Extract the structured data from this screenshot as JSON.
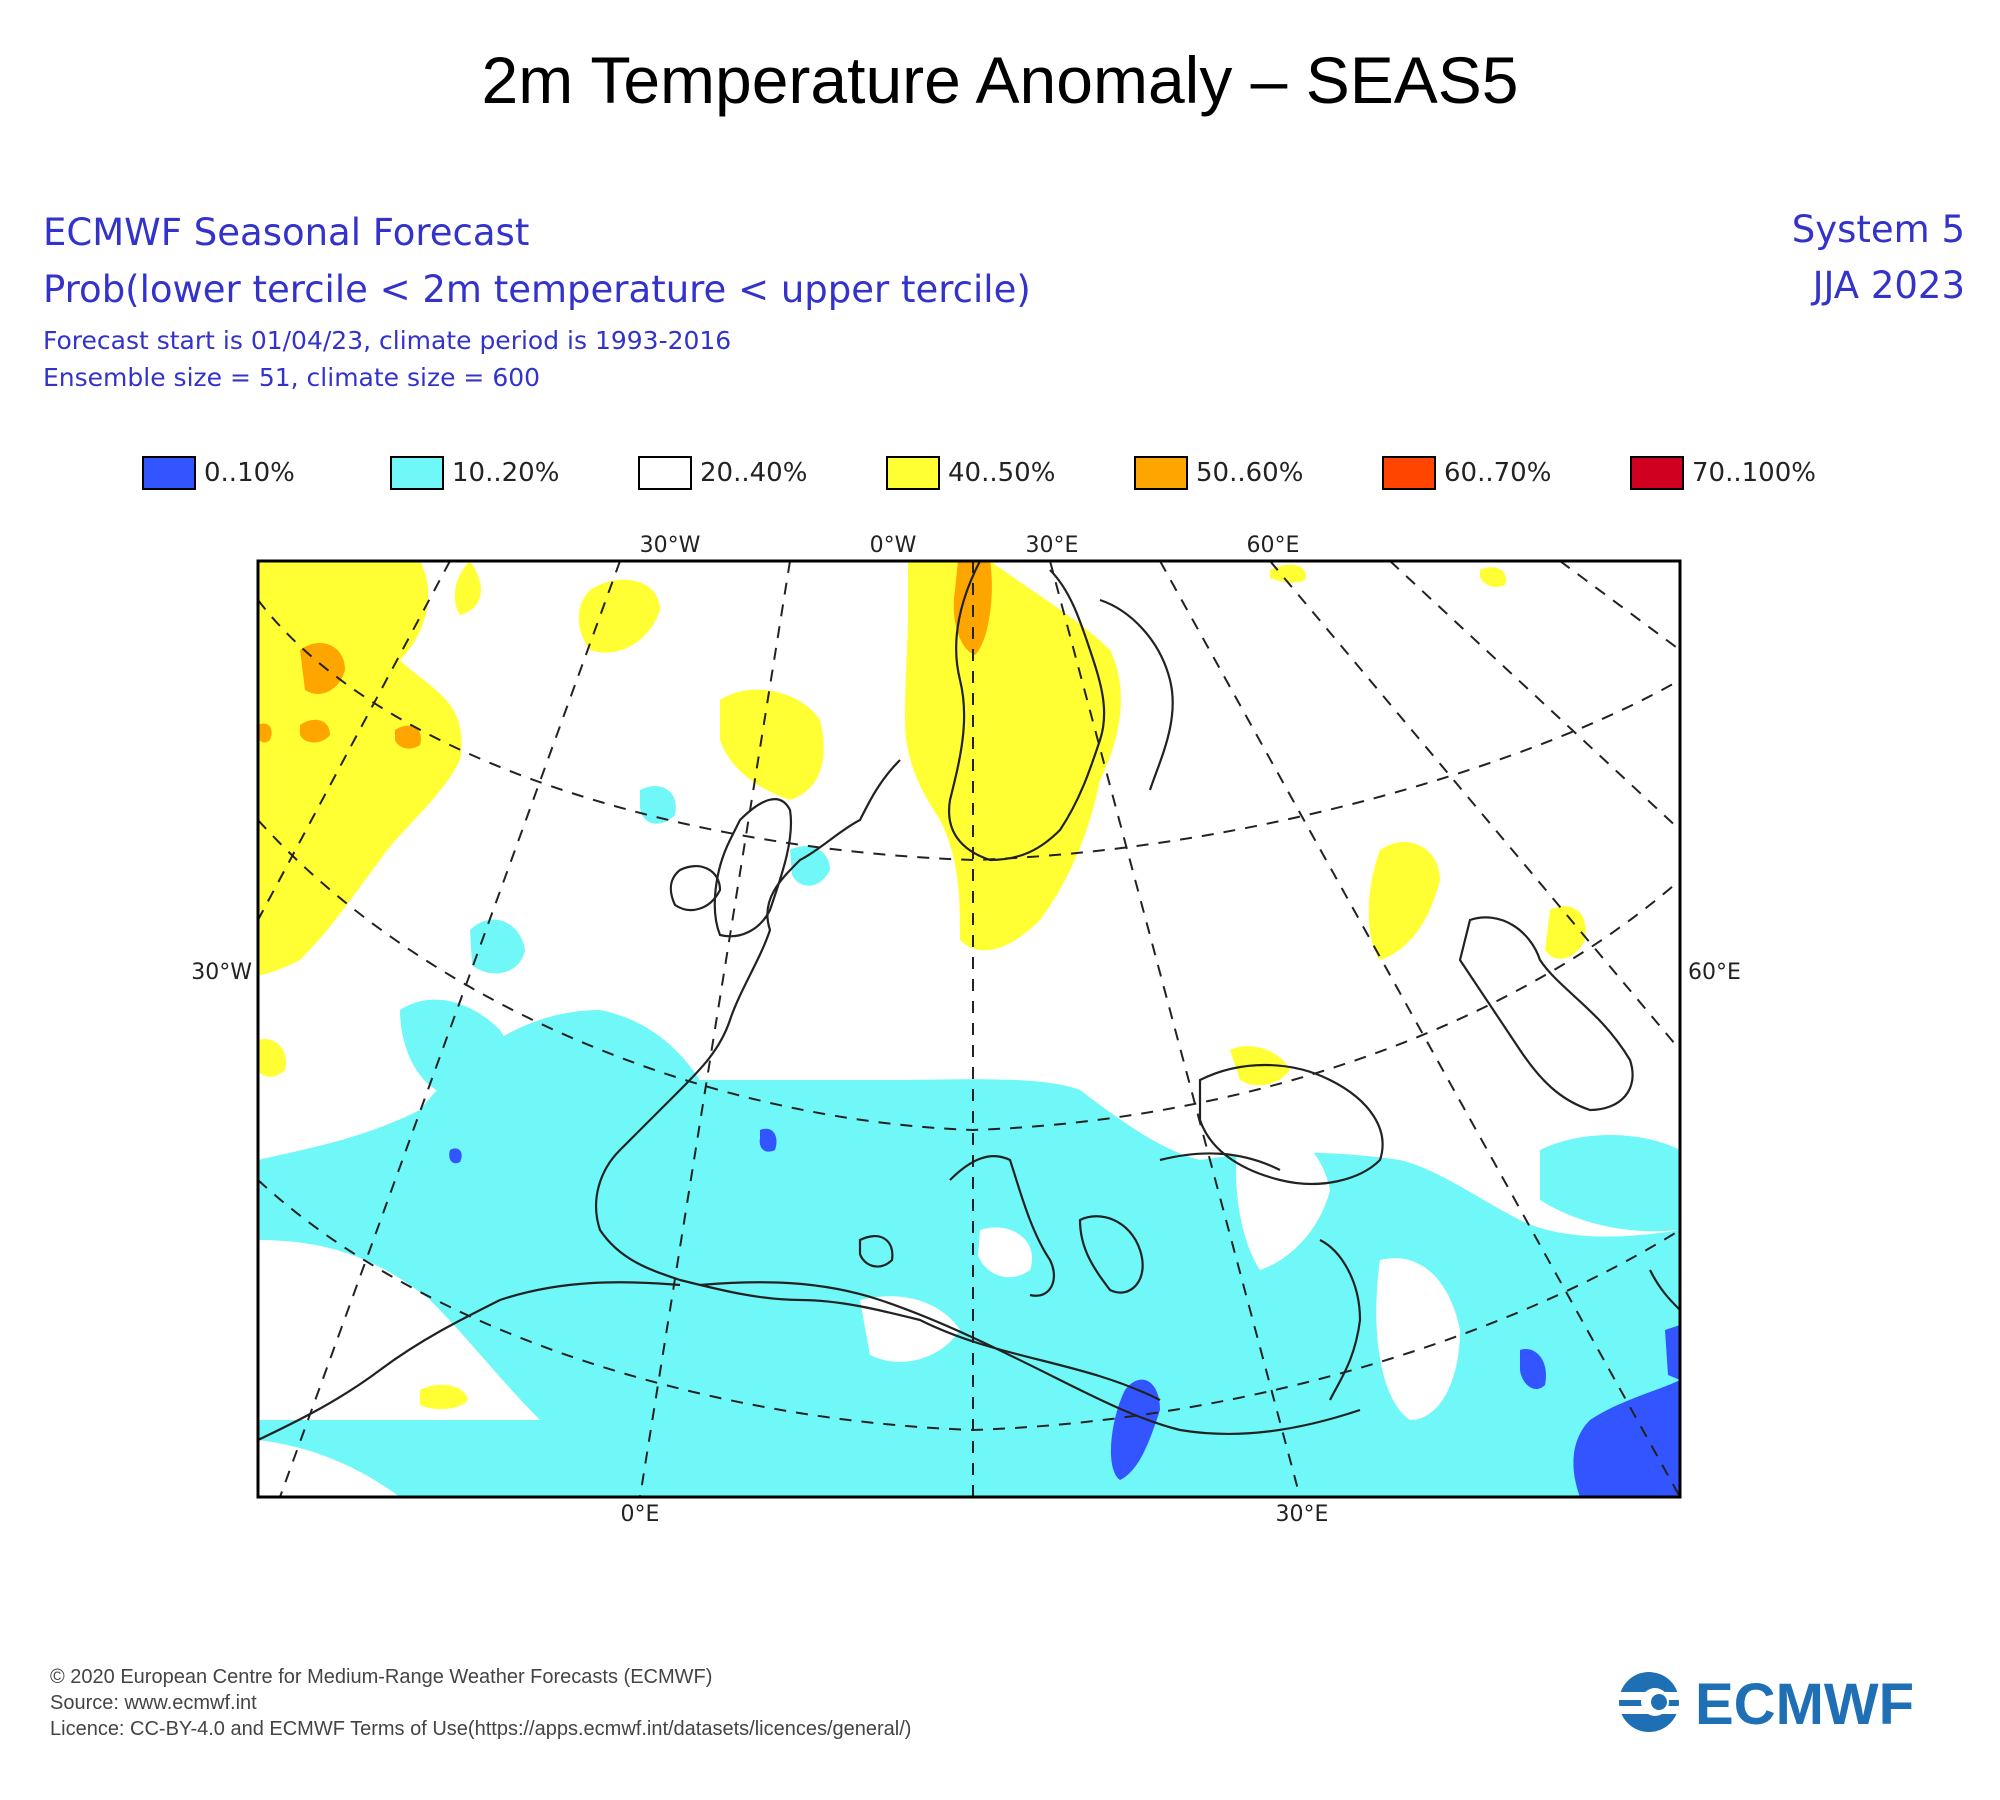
{
  "title": "2m Temperature Anomaly – SEAS5",
  "header": {
    "org_line": "ECMWF Seasonal Forecast",
    "prob_line": "Prob(lower tercile < 2m temperature < upper tercile)",
    "start_line": "Forecast start is 01/04/23, climate period is 1993-2016",
    "ensemble_line": "Ensemble size = 51, climate size = 600",
    "system": "System 5",
    "season": "JJA 2023"
  },
  "legend": [
    {
      "label": "0..10%",
      "color": "#3355ff"
    },
    {
      "label": "10..20%",
      "color": "#70f8f8"
    },
    {
      "label": "20..40%",
      "color": "#ffffff"
    },
    {
      "label": "40..50%",
      "color": "#ffff33"
    },
    {
      "label": "50..60%",
      "color": "#ffa500"
    },
    {
      "label": "60..70%",
      "color": "#ff4500"
    },
    {
      "label": "70..100%",
      "color": "#d00020"
    }
  ],
  "map": {
    "top_labels": [
      "30°W",
      "0°W",
      "30°E",
      "60°E"
    ],
    "bottom_labels": [
      "0°E",
      "30°E"
    ],
    "left_label": "30°W",
    "right_label": "60°E"
  },
  "footer": {
    "copyright": "© 2020 European Centre for Medium-Range Weather Forecasts (ECMWF)",
    "source": "Source: www.ecmwf.int",
    "licence": "Licence: CC-BY-4.0 and ECMWF Terms of Use(https://apps.ecmwf.int/datasets/licences/general/)",
    "logo_text": "ECMWF"
  },
  "colors": {
    "header_text": "#3333cc",
    "logo": "#1f6fb5",
    "cyan": "#70f8f8",
    "yellow": "#ffff33",
    "orange": "#ffa500",
    "blue": "#3355ff"
  }
}
